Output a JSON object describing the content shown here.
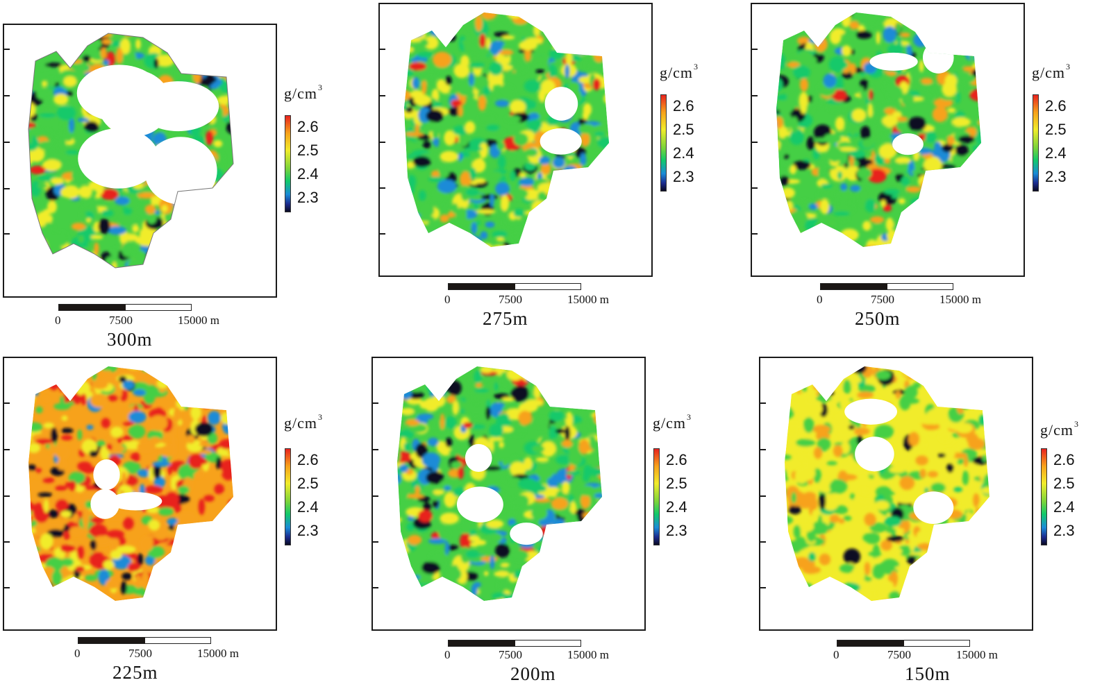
{
  "unit_label": {
    "text": "g/cm",
    "exponent": "3"
  },
  "colorbar_ticks": [
    "2.6",
    "2.5",
    "2.4",
    "2.3"
  ],
  "scale_bar": {
    "labels": [
      "0",
      "7500",
      "15000 m"
    ]
  },
  "colors": {
    "red": "#e8231f",
    "orange": "#f7a21b",
    "yellow": "#f1ec2b",
    "green": "#45cf45",
    "cyan": "#12c96a",
    "blue": "#1a8bd7",
    "dark": "#0a0a22"
  },
  "panels": [
    {
      "id": "p300",
      "title": "300m",
      "dominant": "green",
      "outline": true
    },
    {
      "id": "p275",
      "title": "275m",
      "dominant": "green",
      "outline": false
    },
    {
      "id": "p250",
      "title": "250m",
      "dominant": "green",
      "outline": false
    },
    {
      "id": "p225",
      "title": "225m",
      "dominant": "orange",
      "outline": false
    },
    {
      "id": "p200",
      "title": "200m",
      "dominant": "green",
      "outline": false
    },
    {
      "id": "p150",
      "title": "150m",
      "dominant": "yellow",
      "outline": false
    }
  ]
}
